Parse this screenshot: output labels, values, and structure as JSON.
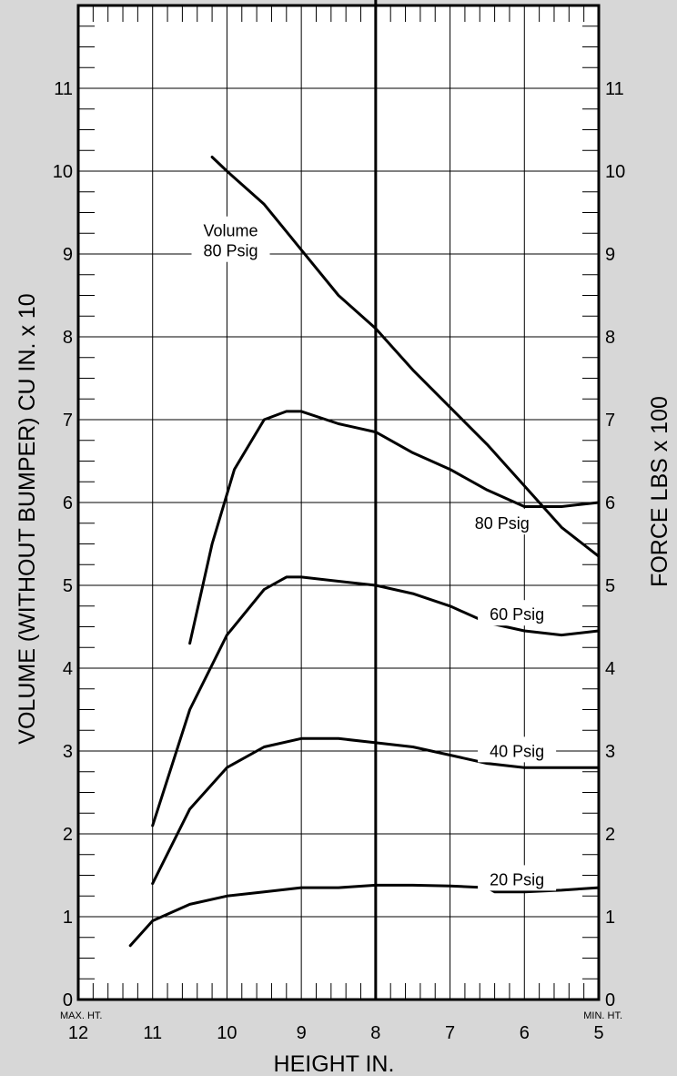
{
  "chart_data": {
    "type": "line",
    "xlabel": "HEIGHT IN.",
    "ylabel_left": "VOLUME (WITHOUT BUMPER) CU IN. x 10",
    "ylabel_right": "FORCE LBS x 100",
    "xlim": [
      12,
      5
    ],
    "x_reversed": true,
    "ylim": [
      0,
      12
    ],
    "x_ticks": [
      "12",
      "11",
      "10",
      "9",
      "8",
      "7",
      "6",
      "5"
    ],
    "y_ticks": [
      "0",
      "1",
      "2",
      "3",
      "4",
      "5",
      "6",
      "7",
      "8",
      "9",
      "10",
      "11"
    ],
    "x_end_notes": {
      "max": "MAX. HT.",
      "min": "MIN. HT."
    },
    "grid": true,
    "reference_line_x": 8,
    "series": [
      {
        "name": "Volume 80 Psig",
        "label": [
          "Volume",
          "80 Psig"
        ],
        "points": [
          [
            10.2,
            10.17
          ],
          [
            10.0,
            10.0
          ],
          [
            9.5,
            9.6
          ],
          [
            9.0,
            9.05
          ],
          [
            8.5,
            8.5
          ],
          [
            8.0,
            8.1
          ],
          [
            7.5,
            7.6
          ],
          [
            7.0,
            7.15
          ],
          [
            6.5,
            6.7
          ],
          [
            6.0,
            6.2
          ],
          [
            5.5,
            5.7
          ],
          [
            5.0,
            5.35
          ]
        ]
      },
      {
        "name": "80 Psig",
        "points": [
          [
            10.5,
            4.3
          ],
          [
            10.2,
            5.5
          ],
          [
            9.9,
            6.4
          ],
          [
            9.5,
            7.0
          ],
          [
            9.2,
            7.1
          ],
          [
            9.0,
            7.1
          ],
          [
            8.5,
            6.95
          ],
          [
            8.0,
            6.85
          ],
          [
            7.5,
            6.6
          ],
          [
            7.0,
            6.4
          ],
          [
            6.5,
            6.15
          ],
          [
            6.0,
            5.95
          ],
          [
            5.5,
            5.95
          ],
          [
            5.0,
            6.0
          ]
        ]
      },
      {
        "name": "60 Psig",
        "points": [
          [
            11.0,
            2.1
          ],
          [
            10.5,
            3.5
          ],
          [
            10.0,
            4.4
          ],
          [
            9.5,
            4.95
          ],
          [
            9.2,
            5.1
          ],
          [
            9.0,
            5.1
          ],
          [
            8.5,
            5.05
          ],
          [
            8.0,
            5.0
          ],
          [
            7.5,
            4.9
          ],
          [
            7.0,
            4.75
          ],
          [
            6.5,
            4.55
          ],
          [
            6.0,
            4.45
          ],
          [
            5.5,
            4.4
          ],
          [
            5.0,
            4.45
          ]
        ]
      },
      {
        "name": "40 Psig",
        "points": [
          [
            11.0,
            1.4
          ],
          [
            10.5,
            2.3
          ],
          [
            10.0,
            2.8
          ],
          [
            9.5,
            3.05
          ],
          [
            9.0,
            3.15
          ],
          [
            8.5,
            3.15
          ],
          [
            8.0,
            3.1
          ],
          [
            7.5,
            3.05
          ],
          [
            7.0,
            2.95
          ],
          [
            6.5,
            2.85
          ],
          [
            6.0,
            2.8
          ],
          [
            5.5,
            2.8
          ],
          [
            5.0,
            2.8
          ]
        ]
      },
      {
        "name": "20 Psig",
        "points": [
          [
            11.3,
            0.65
          ],
          [
            11.0,
            0.95
          ],
          [
            10.5,
            1.15
          ],
          [
            10.0,
            1.25
          ],
          [
            9.5,
            1.3
          ],
          [
            9.0,
            1.35
          ],
          [
            8.5,
            1.35
          ],
          [
            8.0,
            1.38
          ],
          [
            7.5,
            1.38
          ],
          [
            7.0,
            1.37
          ],
          [
            6.5,
            1.35
          ],
          [
            6.4,
            1.3
          ],
          [
            6.0,
            1.3
          ],
          [
            5.5,
            1.32
          ],
          [
            5.0,
            1.35
          ]
        ]
      }
    ]
  }
}
